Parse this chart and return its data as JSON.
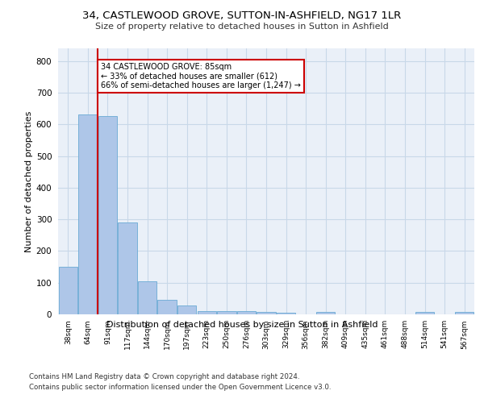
{
  "title": "34, CASTLEWOOD GROVE, SUTTON-IN-ASHFIELD, NG17 1LR",
  "subtitle": "Size of property relative to detached houses in Sutton in Ashfield",
  "xlabel": "Distribution of detached houses by size in Sutton in Ashfield",
  "ylabel": "Number of detached properties",
  "bar_labels": [
    "38sqm",
    "64sqm",
    "91sqm",
    "117sqm",
    "144sqm",
    "170sqm",
    "197sqm",
    "223sqm",
    "250sqm",
    "276sqm",
    "303sqm",
    "329sqm",
    "356sqm",
    "382sqm",
    "409sqm",
    "435sqm",
    "461sqm",
    "488sqm",
    "514sqm",
    "541sqm",
    "567sqm"
  ],
  "bar_values": [
    150,
    632,
    627,
    290,
    104,
    47,
    29,
    11,
    11,
    10,
    8,
    6,
    0,
    8,
    0,
    0,
    0,
    0,
    8,
    0,
    8
  ],
  "bar_color": "#aec6e8",
  "bar_edge_color": "#6aaad4",
  "vline_x": 1.5,
  "vline_color": "#cc0000",
  "annotation_text": "34 CASTLEWOOD GROVE: 85sqm\n← 33% of detached houses are smaller (612)\n66% of semi-detached houses are larger (1,247) →",
  "annotation_box_color": "#ffffff",
  "annotation_box_edge_color": "#cc0000",
  "ylim": [
    0,
    840
  ],
  "yticks": [
    0,
    100,
    200,
    300,
    400,
    500,
    600,
    700,
    800
  ],
  "grid_color": "#c8d8e8",
  "background_color": "#eaf0f8",
  "footer_line1": "Contains HM Land Registry data © Crown copyright and database right 2024.",
  "footer_line2": "Contains public sector information licensed under the Open Government Licence v3.0."
}
